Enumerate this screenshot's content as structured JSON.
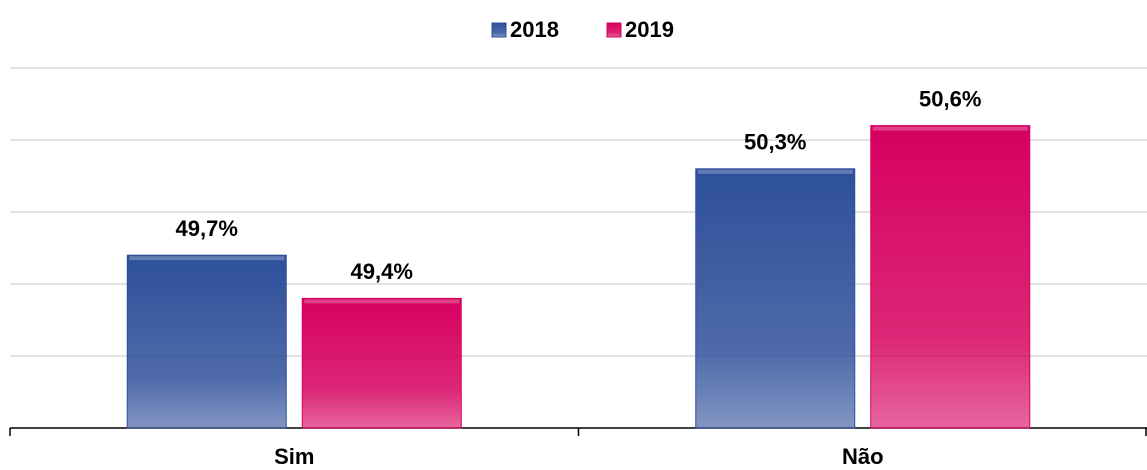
{
  "chart_data": {
    "type": "bar",
    "categories": [
      "Sim",
      "Não"
    ],
    "series": [
      {
        "name": "2018",
        "color": "#2e4f9a",
        "values": [
          49.7,
          50.3
        ],
        "value_labels": [
          "49,7%",
          "50,3%"
        ]
      },
      {
        "name": "2019",
        "color": "#d6005e",
        "values": [
          49.4,
          50.6
        ],
        "value_labels": [
          "49,4%",
          "50,6%"
        ]
      }
    ],
    "ylim": [
      48.5,
      51
    ],
    "yticks": [
      48.5,
      49,
      49.5,
      50,
      50.5,
      51
    ],
    "grid": true,
    "legend": "top"
  }
}
